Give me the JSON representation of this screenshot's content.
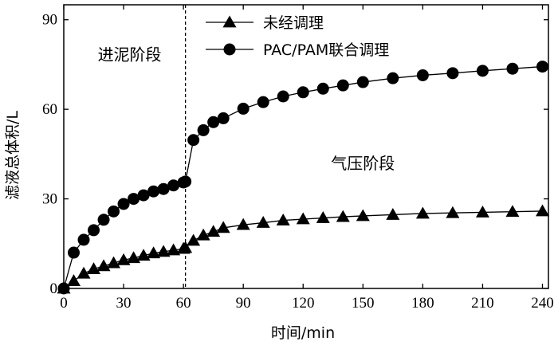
{
  "chart_data": {
    "type": "line",
    "xlabel": "时间/min",
    "ylabel": "滤液总体积/L",
    "xlim": [
      0,
      243
    ],
    "ylim": [
      0,
      95
    ],
    "xticks": [
      0,
      30,
      60,
      90,
      120,
      150,
      180,
      210,
      240
    ],
    "yticks": [
      0,
      30,
      60,
      90
    ],
    "grid": false,
    "legend_position": "top-right",
    "divider_x": 61,
    "annotations": [
      {
        "text": "进泥阶段",
        "x": 33,
        "y": 76.5
      },
      {
        "text": "气压阶段",
        "x": 150,
        "y": 40
      }
    ],
    "series": [
      {
        "name": "未经调理",
        "marker": "triangle",
        "x": [
          0,
          5,
          10,
          15,
          20,
          25,
          30,
          35,
          40,
          45,
          50,
          55,
          60,
          61,
          65,
          70,
          75,
          80,
          90,
          100,
          110,
          120,
          130,
          140,
          150,
          165,
          180,
          195,
          210,
          225,
          240
        ],
        "y": [
          0,
          2.5,
          5,
          6.5,
          7.5,
          8.5,
          9.5,
          10.2,
          11,
          11.8,
          12.3,
          12.8,
          13.3,
          13.6,
          16,
          17.8,
          19,
          20.3,
          21.3,
          22,
          22.8,
          23.2,
          23.6,
          24,
          24.3,
          24.7,
          25.1,
          25.3,
          25.5,
          25.7,
          25.9
        ]
      },
      {
        "name": "PAC/PAM联合调理",
        "marker": "circle",
        "x": [
          0,
          5,
          10,
          15,
          20,
          25,
          30,
          35,
          40,
          45,
          50,
          55,
          60,
          61,
          65,
          70,
          75,
          80,
          90,
          100,
          110,
          120,
          130,
          140,
          150,
          165,
          180,
          195,
          210,
          225,
          240
        ],
        "y": [
          0,
          12,
          16.3,
          19.5,
          23,
          25.8,
          28.3,
          30,
          31.2,
          32.5,
          33.3,
          34.5,
          35.5,
          35.8,
          49.7,
          53,
          55.7,
          57,
          60.2,
          62.4,
          64.3,
          65.7,
          66.9,
          68,
          69.1,
          70.4,
          71.4,
          72.1,
          72.9,
          73.6,
          74.3
        ]
      }
    ]
  }
}
